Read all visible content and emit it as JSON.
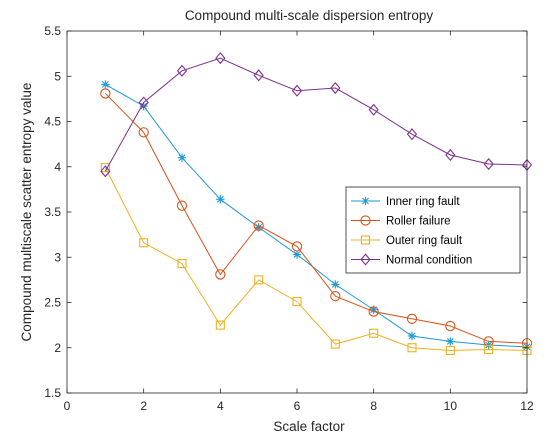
{
  "chart_data": {
    "type": "line",
    "title": "Compound multi-scale dispersion entropy",
    "xlabel": "Scale factor",
    "ylabel": "Compound multiscale scatter entropy value",
    "xlim": [
      0,
      12
    ],
    "ylim": [
      1.5,
      5.5
    ],
    "xticks": [
      "0",
      "2",
      "4",
      "6",
      "8",
      "10",
      "12"
    ],
    "yticks": [
      "1.5",
      "2",
      "2.5",
      "3",
      "3.5",
      "4",
      "4.5",
      "5",
      "5.5"
    ],
    "grid": false,
    "legend_position": "center-right",
    "x": [
      1,
      2,
      3,
      4,
      5,
      6,
      7,
      8,
      9,
      10,
      11,
      12
    ],
    "series": [
      {
        "name": "Inner ring fault",
        "color": "#1f9ad6",
        "marker": "asterisk",
        "values": [
          4.91,
          4.67,
          4.1,
          3.64,
          3.33,
          3.03,
          2.7,
          2.42,
          2.13,
          2.07,
          2.03,
          2.01
        ]
      },
      {
        "name": "Roller failure",
        "color": "#d95319",
        "marker": "circle",
        "values": [
          4.81,
          4.38,
          3.57,
          2.81,
          3.35,
          3.12,
          2.57,
          2.4,
          2.32,
          2.24,
          2.07,
          2.05
        ]
      },
      {
        "name": "Outer ring fault",
        "color": "#edb120",
        "marker": "square",
        "values": [
          3.99,
          3.16,
          2.93,
          2.25,
          2.75,
          2.51,
          2.04,
          2.16,
          2.0,
          1.97,
          1.98,
          1.97
        ]
      },
      {
        "name": "Normal condition",
        "color": "#7e2f8e",
        "marker": "diamond",
        "values": [
          3.95,
          4.71,
          5.06,
          5.2,
          5.01,
          4.84,
          4.87,
          4.63,
          4.36,
          4.13,
          4.03,
          4.02
        ]
      }
    ]
  }
}
